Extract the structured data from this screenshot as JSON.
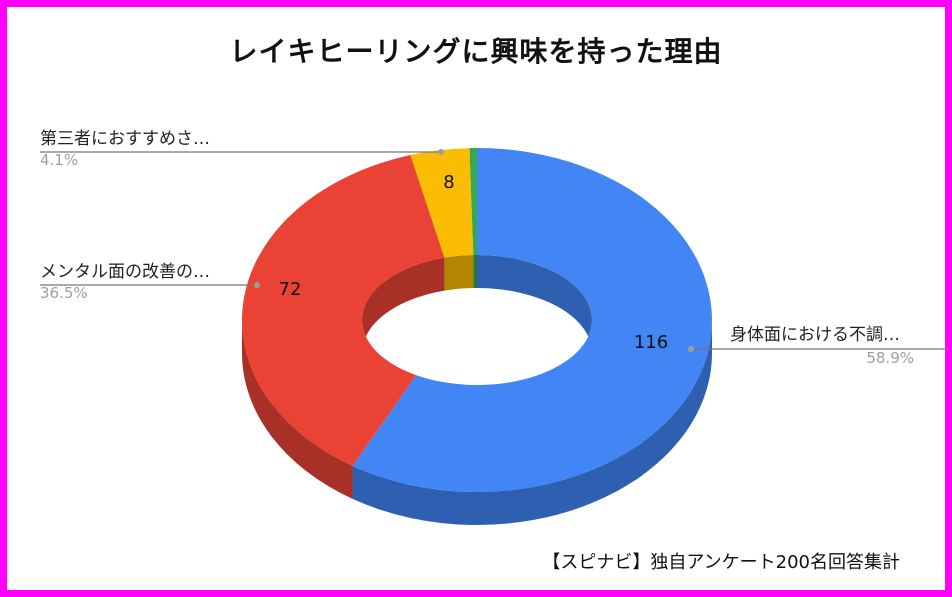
{
  "colors": {
    "frame": "#ff00ff",
    "blue": "#4285f4",
    "red": "#ea4335",
    "yellow": "#fbbc04",
    "green": "#34a853"
  },
  "chart_data": {
    "type": "pie",
    "subtype": "3d-donut",
    "title": "レイキヒーリングに興味を持った理由",
    "slices": [
      {
        "label": "身体面における不調…",
        "value": 116,
        "percent": "58.9%",
        "color": "#4285f4",
        "side_color": "#2f5fb0"
      },
      {
        "label": "メンタル面の改善の…",
        "value": 72,
        "percent": "36.5%",
        "color": "#ea4335",
        "side_color": "#a83026"
      },
      {
        "label": "第三者におすすめさ…",
        "value": 8,
        "percent": "4.1%",
        "color": "#fbbc04",
        "side_color": "#b38600"
      },
      {
        "label": "",
        "value": 1,
        "percent": "",
        "color": "#34a853",
        "side_color": "#237a3b"
      }
    ],
    "legend": "callout labels outside slices",
    "footer": "【スピナビ】独自アンケート200名回答集計"
  }
}
